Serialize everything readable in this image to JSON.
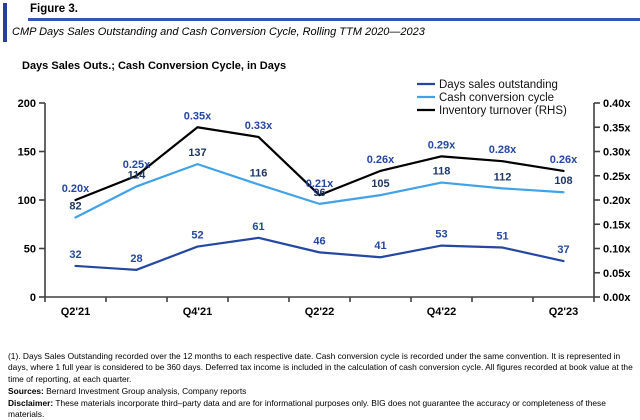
{
  "figure": {
    "label": "Figure 3.",
    "subtitle": "CMP Days Sales Outstanding and Cash Conversion Cycle, Rolling TTM 2020—2023"
  },
  "chart_data": {
    "type": "line",
    "title": "Days Sales Outs.; Cash Conversion Cycle, in Days",
    "categories": [
      "Q2'21",
      "Q3'21",
      "Q4'21",
      "Q1'22",
      "Q2'22",
      "Q3'22",
      "Q4'22",
      "Q1'23",
      "Q2'23"
    ],
    "x_axis": {
      "shown_tick_labels": [
        "Q2'21",
        "Q4'21",
        "Q2'22",
        "Q4'22",
        "Q2'23"
      ],
      "label_every": 2
    },
    "left_axis": {
      "min": 0,
      "max": 200,
      "ticks": [
        0,
        50,
        100,
        150,
        200
      ]
    },
    "right_axis": {
      "min": 0,
      "max": 0.4,
      "tick_labels": [
        "0.00x",
        "0.05x",
        "0.10x",
        "0.15x",
        "0.20x",
        "0.25x",
        "0.30x",
        "0.35x",
        "0.40x"
      ]
    },
    "grid": false,
    "legend_position": "top-right",
    "series": [
      {
        "name": "Days sales outstanding",
        "axis": "left",
        "color": "#2447A2",
        "label_color": "#2447A2",
        "values": [
          32,
          28,
          52,
          61,
          46,
          41,
          53,
          51,
          37
        ],
        "data_labels": [
          "32",
          "28",
          "52",
          "61",
          "46",
          "41",
          "53",
          "51",
          "37"
        ]
      },
      {
        "name": "Cash conversion cycle",
        "axis": "left",
        "color": "#41A2E8",
        "label_color": "#1F3864",
        "values": [
          82,
          114,
          137,
          116,
          96,
          105,
          118,
          112,
          108
        ],
        "data_labels": [
          "82",
          "114",
          "137",
          "116",
          "96",
          "105",
          "118",
          "112",
          "108"
        ]
      },
      {
        "name": "Inventory turnover (RHS)",
        "axis": "right",
        "color": "#000000",
        "label_color": "#2447A2",
        "values": [
          0.2,
          0.25,
          0.35,
          0.33,
          0.21,
          0.26,
          0.29,
          0.28,
          0.26
        ],
        "data_labels": [
          "0.20x",
          "0.25x",
          "0.35x",
          "0.33x",
          "0.21x",
          "0.26x",
          "0.29x",
          "0.28x",
          "0.26x"
        ]
      }
    ]
  },
  "footer": {
    "note": "(1). Days Sales Outstanding recorded over the 12 months to each respective date. Cash conversion cycle is recorded under the same convention. It is represented in days, where 1 full year is considered to be 360 days. Deferred tax income is included in the calculation of cash conversion cycle. All figures recorded at book value at the time of reporting, at each quarter.",
    "sources_label": "Sources:",
    "sources_text": " Bernard Investment Group analysis, Company reports",
    "disclaimer_label": "Disclaimer:",
    "disclaimer_text": " These materials incorporate third–party data and are for informational purposes only. BIG does not guarantee the accuracy or completeness of these materials."
  },
  "colors": {
    "accent_bar": "#2B3E9B",
    "header_rule": "#3355B8",
    "axis": "#404040",
    "dso_blue": "#2447A2",
    "ccc_light_blue": "#41A2E8",
    "navy_label": "#1F3864"
  }
}
